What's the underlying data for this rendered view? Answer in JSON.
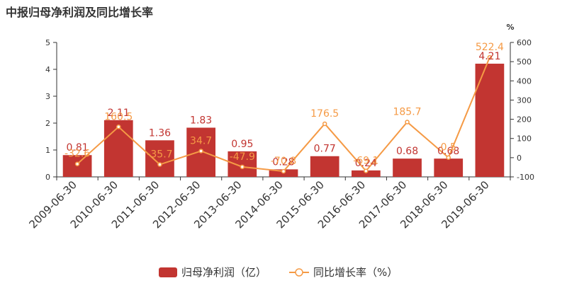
{
  "chart_data": {
    "type": "bar",
    "title": "中报归母净利润及同比增长率",
    "categories": [
      "2009-06-30",
      "2010-06-30",
      "2011-06-30",
      "2012-06-30",
      "2013-06-30",
      "2014-06-30",
      "2015-06-30",
      "2016-06-30",
      "2017-06-30",
      "2018-06-30",
      "2019-06-30"
    ],
    "series": [
      {
        "name": "归母净利润（亿）",
        "type": "bar",
        "axis": "left",
        "color": "#c23531",
        "values": [
          0.81,
          2.11,
          1.36,
          1.83,
          0.95,
          0.28,
          0.77,
          0.24,
          0.68,
          0.68,
          4.21
        ],
        "labels": [
          "0.81",
          "2.11",
          "1.36",
          "1.83",
          "0.95",
          "0.28",
          "0.77",
          "0.24",
          "0.68",
          "0.68",
          "4.21"
        ]
      },
      {
        "name": "同比增长率（%）",
        "type": "line",
        "axis": "right",
        "color": "#f59a45",
        "values": [
          -32.6,
          160.5,
          -35.7,
          34.7,
          -47.9,
          -70.8,
          176.5,
          -69.1,
          185.7,
          0.5,
          522.4
        ],
        "labels": [
          "-32.6",
          "160.5",
          "-35.7",
          "34.7",
          "-47.9",
          "-70.8",
          "176.5",
          "-69.1",
          "185.7",
          "0.5",
          "522.4"
        ]
      }
    ],
    "y_left": {
      "min": 0,
      "max": 5,
      "ticks": [
        0,
        1,
        2,
        3,
        4,
        5
      ]
    },
    "y_right": {
      "min": -100,
      "max": 600,
      "ticks": [
        -100,
        0,
        100,
        200,
        300,
        400,
        500,
        600
      ],
      "unit": "%"
    },
    "legend": {
      "placement": "bottom-center"
    },
    "grid": false
  }
}
